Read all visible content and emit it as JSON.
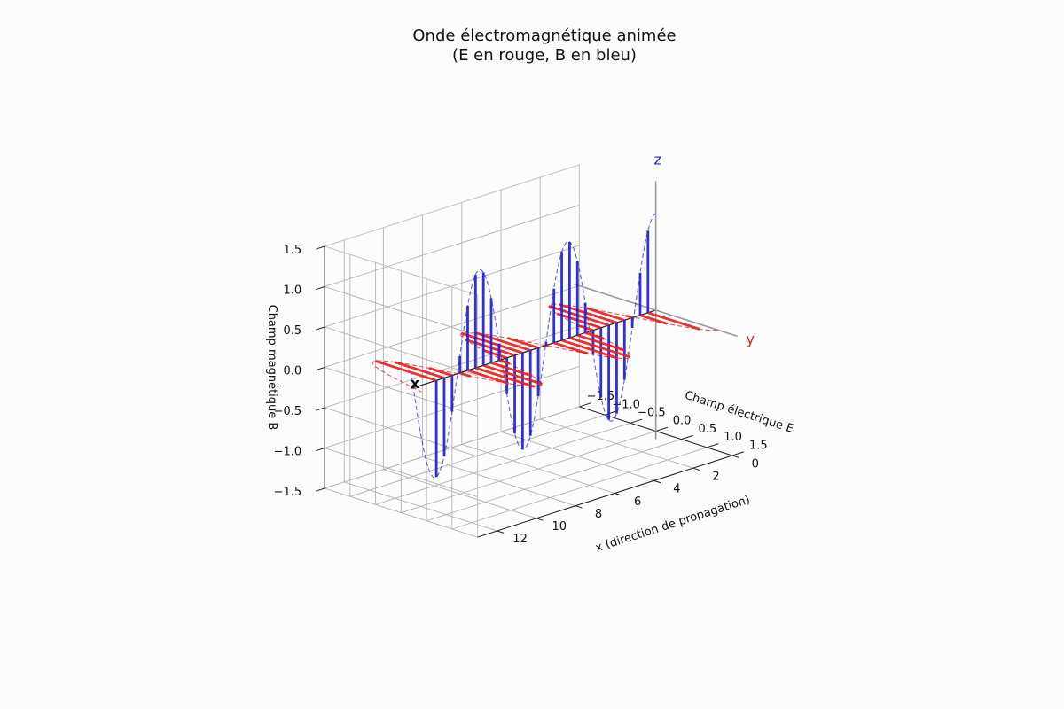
{
  "chart_data": {
    "type": "line",
    "projection": "3d",
    "title_line1": "Onde électromagnétique animée",
    "title_line2": "(E en rouge, B en bleu)",
    "xlabel": "x (direction de propagation)",
    "ylabel": "Champ électrique E",
    "zlabel": "Champ magnétique B",
    "xlim": [
      0,
      13
    ],
    "ylim": [
      -1.5,
      1.5
    ],
    "zlim": [
      -1.5,
      1.5
    ],
    "x_ticks": [
      0,
      2,
      4,
      6,
      8,
      10,
      12
    ],
    "x_tick_labels": [
      "0",
      "2",
      "4",
      "6",
      "8",
      "10",
      "12"
    ],
    "y_ticks": [
      -1.5,
      -1.0,
      -0.5,
      0.0,
      0.5,
      1.0,
      1.5
    ],
    "y_tick_labels": [
      "−1.5",
      "−1.0",
      "−0.5",
      "0.0",
      "0.5",
      "1.0",
      "1.5"
    ],
    "z_ticks": [
      -1.5,
      -1.0,
      -0.5,
      0.0,
      0.5,
      1.0,
      1.5
    ],
    "z_tick_labels": [
      "−1.5",
      "−1.0",
      "−0.5",
      "0.0",
      "0.5",
      "1.0",
      "1.5"
    ],
    "grid": true,
    "wave": {
      "x_start": 0,
      "x_end": 12.5,
      "wavelength": 4.5,
      "amplitude": 1.2
    },
    "series": [
      {
        "name": "E",
        "color": "#e8201e",
        "plane": "xy"
      },
      {
        "name": "B",
        "color": "#1f1fdc",
        "plane": "xz"
      }
    ],
    "vector_x_positions": [
      0.4,
      0.8,
      1.2,
      1.6,
      2.0,
      2.4,
      2.8,
      3.2,
      3.6,
      4.0,
      4.4,
      4.8,
      5.2,
      5.6,
      6.0,
      6.4,
      6.8,
      7.2,
      7.6,
      8.0,
      8.4,
      8.8,
      9.2,
      9.6,
      10.0,
      10.4,
      10.8,
      11.2
    ],
    "axis_labels": {
      "x": "x",
      "y": "y",
      "z": "z"
    },
    "axis_label_colors": {
      "x": "#000000",
      "y": "#e8201e",
      "z": "#1f1fdc"
    },
    "guide_line_color": "#999999"
  }
}
